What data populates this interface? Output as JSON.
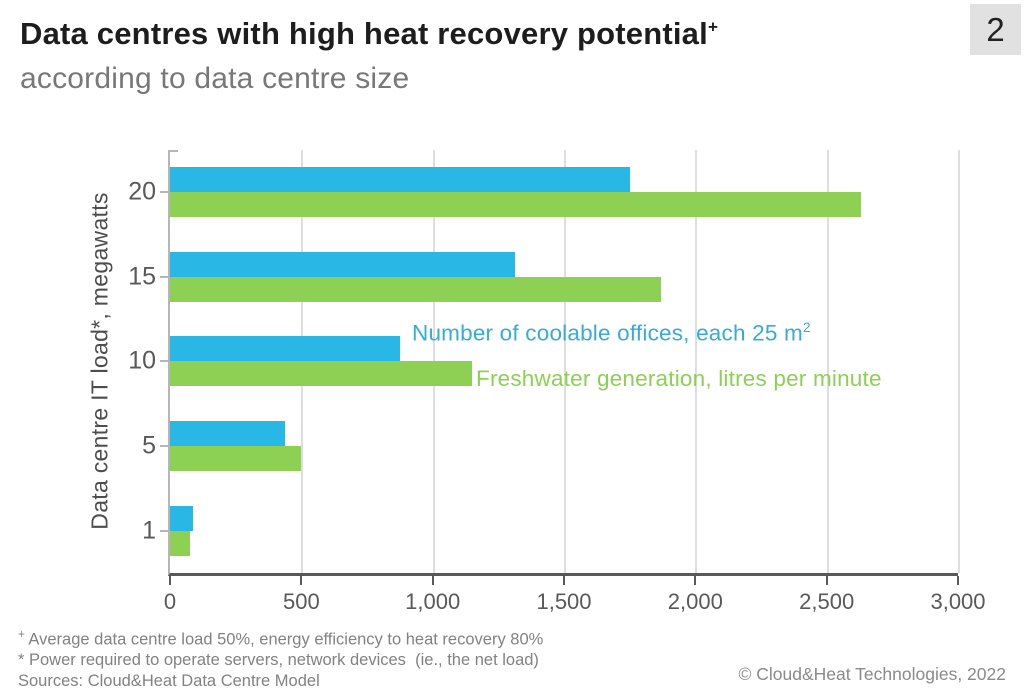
{
  "header": {
    "title": "Data centres with high heat recovery potential",
    "title_sup": "+",
    "subtitle": "according to data centre size",
    "page_badge": "2"
  },
  "chart_data": {
    "type": "bar",
    "orientation": "horizontal",
    "title": "Data centres with high heat recovery potential, according to data centre size",
    "ylabel": "Data centre IT load*, megawatts",
    "xlabel": "",
    "categories": [
      "20",
      "15",
      "10",
      "5",
      "1"
    ],
    "series": [
      {
        "name": "Number of coolable offices, each 25 m²",
        "color": "#29b8e6",
        "values": [
          1750,
          1313,
          875,
          437,
          88
        ]
      },
      {
        "name": "Freshwater generation, litres per minute",
        "color": "#8dd054",
        "values": [
          2630,
          1870,
          1150,
          500,
          78
        ]
      }
    ],
    "xlim": [
      0,
      3000
    ],
    "xticks": [
      0,
      500,
      1000,
      1500,
      2000,
      2500,
      3000
    ],
    "xtick_labels": [
      "0",
      "500",
      "1,000",
      "1,500",
      "2,000",
      "2,500",
      "3,000"
    ],
    "grid": true,
    "legend_position": "inside-right"
  },
  "legend": {
    "series1_label": "Number of coolable offices, each 25 m",
    "series1_sup": "2",
    "series2_label": "Freshwater generation, litres per minute"
  },
  "footnotes": {
    "line1_sup": "+",
    "line1_text": " Average data centre load 50%, energy efficiency to heat recovery 80%",
    "line2": "* Power required to operate servers, network devices  (ie., the net load)",
    "line3": "Sources: Cloud&Heat Data Centre Model"
  },
  "footer": {
    "copyright": "© Cloud&Heat Technologies, 2022"
  }
}
